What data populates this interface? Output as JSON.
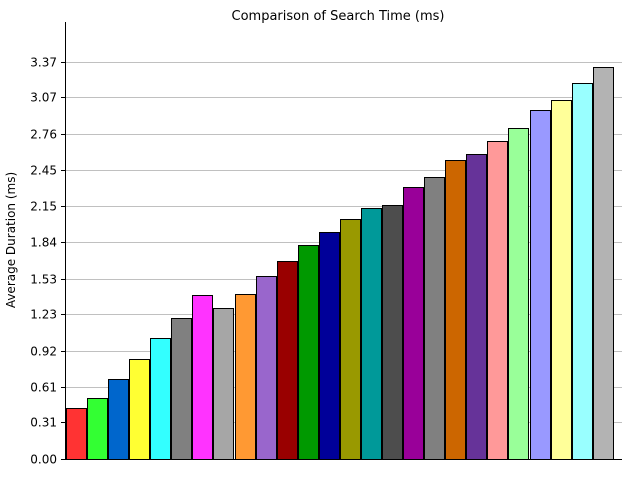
{
  "chart_data": {
    "type": "bar",
    "title": "Comparison of Search Time (ms)",
    "xlabel": "",
    "ylabel": "Average Duration (ms)",
    "ylim": [
      0,
      3.37
    ],
    "yticks": [
      "0.00",
      "0.31",
      "0.61",
      "0.92",
      "1.23",
      "1.53",
      "1.84",
      "2.15",
      "2.45",
      "2.76",
      "3.07",
      "3.37"
    ],
    "grid": true,
    "legend": "none",
    "values": [
      0.43,
      0.52,
      0.68,
      0.85,
      1.03,
      1.2,
      1.39,
      1.28,
      1.4,
      1.55,
      1.68,
      1.82,
      1.93,
      2.04,
      2.13,
      2.16,
      2.31,
      2.39,
      2.54,
      2.59,
      2.7,
      2.81,
      2.96,
      3.05,
      3.19,
      3.33
    ],
    "colors": [
      "#ff3333",
      "#33ff33",
      "#0066cc",
      "#ffff33",
      "#33ffff",
      "#808080",
      "#ff33ff",
      "#a6a6a6",
      "#ff9933",
      "#9966cc",
      "#990000",
      "#009900",
      "#000099",
      "#999900",
      "#009999",
      "#4d4d4d",
      "#990099",
      "#808080",
      "#cc6600",
      "#663399",
      "#ff9999",
      "#99ff99",
      "#9999ff",
      "#ffff99",
      "#99ffff",
      "#b3b3b3"
    ]
  }
}
